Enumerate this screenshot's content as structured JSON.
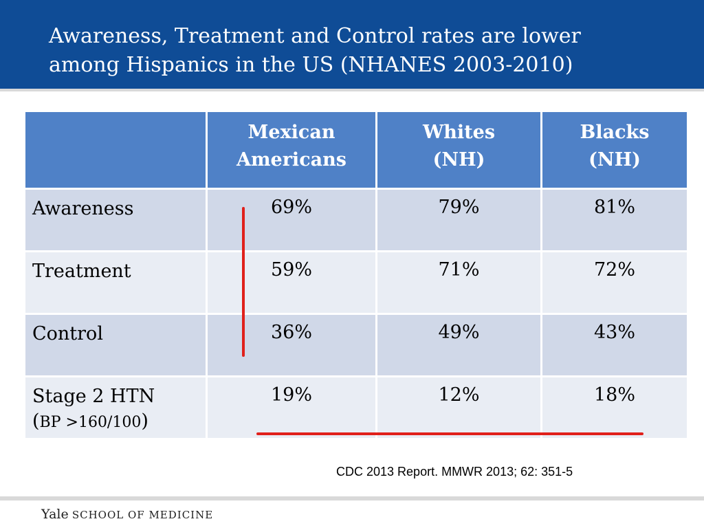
{
  "slide": {
    "title_line1": "Awareness, Treatment and Control rates are lower",
    "title_line2": "among Hispanics in the US (NHANES 2003-2010)"
  },
  "table": {
    "header": [
      "",
      "Mexican Americans",
      "Whites (NH)",
      "Blacks (NH)"
    ],
    "header_lines": [
      [
        "",
        ""
      ],
      [
        "Mexican",
        "Americans"
      ],
      [
        "Whites",
        "(NH)"
      ],
      [
        "Blacks",
        "(NH)"
      ]
    ],
    "rows": [
      {
        "label": "Awareness",
        "values": [
          "69%",
          "79%",
          "81%"
        ]
      },
      {
        "label": "Treatment",
        "values": [
          "59%",
          "71%",
          "72%"
        ]
      },
      {
        "label": "Control",
        "values": [
          "36%",
          "49%",
          "43%"
        ]
      },
      {
        "label": "Stage 2 HTN",
        "label_sub": "BP >160/100",
        "values": [
          "19%",
          "12%",
          "18%"
        ]
      }
    ]
  },
  "citation": "CDC 2013 Report. MMWR 2013; 62: 351-5",
  "footer": {
    "logo_main": "Yale",
    "logo_sub": "SCHOOL OF MEDICINE"
  },
  "colors": {
    "title_bar": "#0f4c96",
    "header_cells": "#4f81c7",
    "row_odd": "#d0d8e8",
    "row_even": "#e9edf4",
    "annotation_lines": "#e0201b"
  }
}
